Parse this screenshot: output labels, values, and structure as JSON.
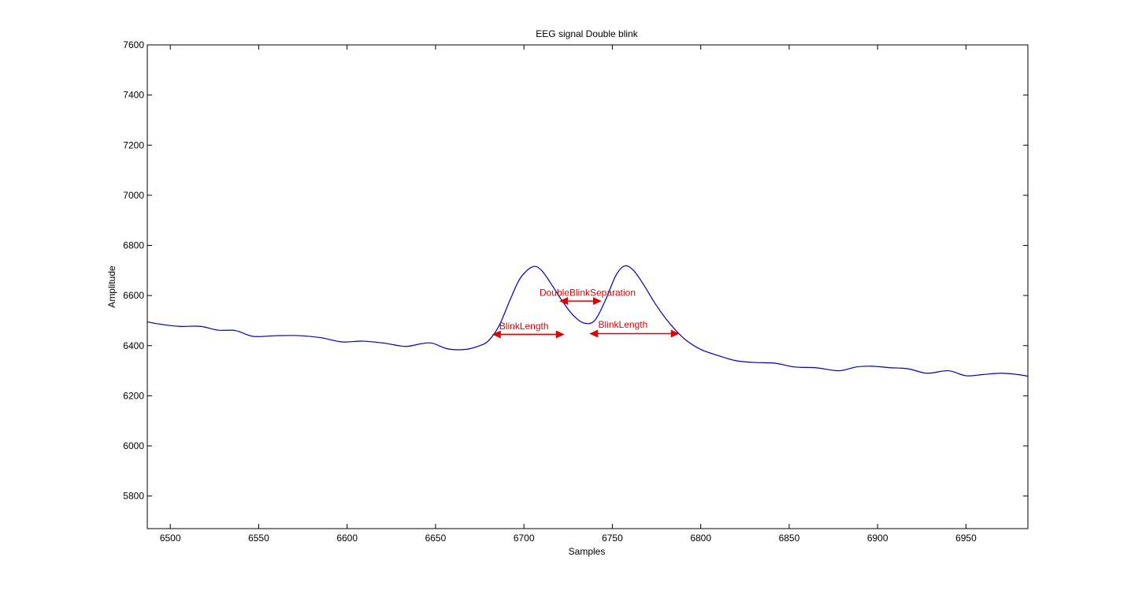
{
  "chart_data": {
    "type": "line",
    "title": "EEG signal Double blink",
    "xlabel": "Samples",
    "ylabel": "Amplitude",
    "xlim": [
      6487,
      6985
    ],
    "ylim": [
      5670,
      7600
    ],
    "xticks": [
      6500,
      6550,
      6600,
      6650,
      6700,
      6750,
      6800,
      6850,
      6900,
      6950
    ],
    "yticks": [
      5800,
      6000,
      6200,
      6400,
      6600,
      6800,
      7000,
      7200,
      7400,
      7600
    ],
    "grid": false,
    "line_color": "#0000b8",
    "annotation_color": "#e00000",
    "series": [
      {
        "x": [
          6487,
          6495,
          6505,
          6517,
          6527,
          6537,
          6547,
          6560,
          6573,
          6585,
          6597,
          6609,
          6621,
          6633,
          6642,
          6648,
          6657,
          6667,
          6675,
          6680,
          6686,
          6692,
          6698,
          6705,
          6710,
          6716,
          6722,
          6728,
          6734,
          6740,
          6746,
          6752,
          6757,
          6762,
          6768,
          6774,
          6780,
          6786,
          6792,
          6800,
          6810,
          6820,
          6830,
          6842,
          6853,
          6865,
          6878,
          6888,
          6897,
          6907,
          6917,
          6928,
          6940,
          6950,
          6960,
          6970,
          6979,
          6985
        ],
        "y": [
          6495,
          6485,
          6477,
          6477,
          6462,
          6460,
          6437,
          6440,
          6440,
          6432,
          6415,
          6418,
          6410,
          6397,
          6408,
          6410,
          6387,
          6385,
          6400,
          6420,
          6480,
          6580,
          6670,
          6715,
          6700,
          6640,
          6575,
          6520,
          6490,
          6500,
          6580,
          6680,
          6718,
          6700,
          6640,
          6570,
          6510,
          6460,
          6420,
          6385,
          6360,
          6340,
          6333,
          6330,
          6315,
          6312,
          6300,
          6315,
          6318,
          6312,
          6308,
          6290,
          6300,
          6280,
          6285,
          6290,
          6285,
          6278
        ]
      }
    ],
    "annotations": [
      {
        "label": "BlinkLength",
        "x_start": 6682,
        "x_end": 6723,
        "y": 6445,
        "label_x": 6700,
        "label_y": 6478
      },
      {
        "label": "DoubleBlinkSeparation",
        "x_start": 6720,
        "x_end": 6744,
        "y": 6578,
        "label_x": 6736,
        "label_y": 6612
      },
      {
        "label": "BlinkLength",
        "x_start": 6737,
        "x_end": 6788,
        "y": 6448,
        "label_x": 6756,
        "label_y": 6484
      }
    ]
  }
}
